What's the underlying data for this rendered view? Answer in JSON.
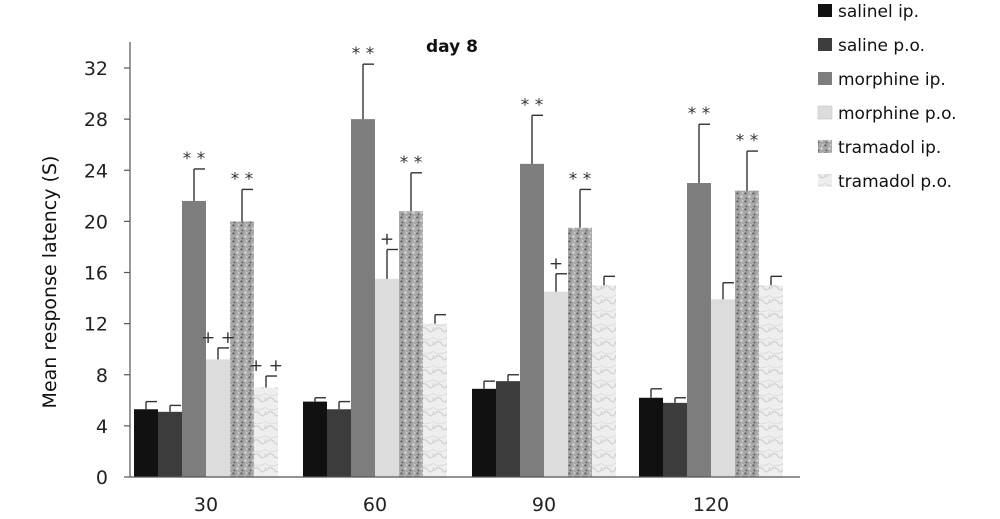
{
  "chart_data": {
    "type": "bar",
    "title": "day 8",
    "xlabel": "",
    "ylabel": "Mean response latency  (S)",
    "ylim": [
      0,
      34
    ],
    "yticks": [
      0,
      4,
      8,
      12,
      16,
      20,
      24,
      28,
      32
    ],
    "categories": [
      "30",
      "60",
      "90",
      "120"
    ],
    "legend_position": "top-right",
    "series": [
      {
        "name": "salinel ip.",
        "color": "#111111",
        "pattern": "solid",
        "values": [
          5.3,
          5.9,
          6.9,
          6.2
        ],
        "errors": [
          0.6,
          0.3,
          0.6,
          0.7
        ],
        "annotations": [
          "",
          "",
          "",
          ""
        ]
      },
      {
        "name": "saline p.o.",
        "color": "#3c3c3c",
        "pattern": "solid",
        "values": [
          5.1,
          5.3,
          7.5,
          5.8
        ],
        "errors": [
          0.5,
          0.6,
          0.5,
          0.4
        ],
        "annotations": [
          "",
          "",
          "",
          ""
        ]
      },
      {
        "name": "morphine ip.",
        "color": "#7d7d7d",
        "pattern": "solid",
        "values": [
          21.6,
          28.0,
          24.5,
          23.0
        ],
        "errors": [
          2.5,
          4.3,
          3.8,
          4.6
        ],
        "annotations": [
          "**",
          "**",
          "**",
          "**"
        ]
      },
      {
        "name": "morphine p.o.",
        "color": "#dcdcdc",
        "pattern": "solid",
        "values": [
          9.2,
          15.5,
          14.5,
          13.9
        ],
        "errors": [
          0.9,
          2.3,
          1.4,
          1.3
        ],
        "annotations": [
          "++",
          "+",
          "+",
          ""
        ]
      },
      {
        "name": "tramadol ip.",
        "color": "#9a9a9a",
        "pattern": "speckled",
        "values": [
          20.0,
          20.8,
          19.5,
          22.4
        ],
        "errors": [
          2.5,
          3.0,
          3.0,
          3.1
        ],
        "annotations": [
          "**",
          "**",
          "**",
          "**"
        ]
      },
      {
        "name": "tramadol p.o.",
        "color": "#ececec",
        "pattern": "marbled",
        "values": [
          7.0,
          12.0,
          15.0,
          15.0
        ],
        "errors": [
          0.9,
          0.7,
          0.7,
          0.7
        ],
        "annotations": [
          "++",
          "",
          "",
          ""
        ]
      }
    ]
  }
}
